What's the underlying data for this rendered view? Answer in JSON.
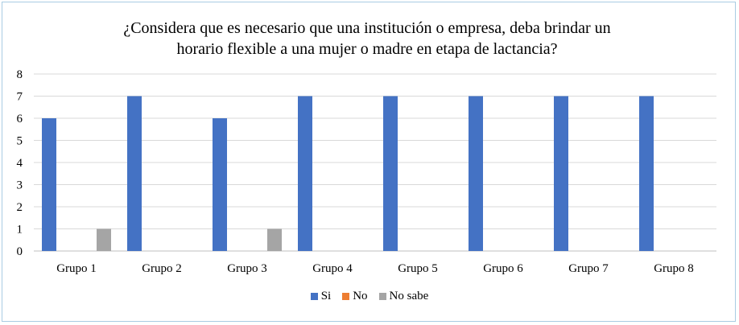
{
  "chart_data": {
    "type": "bar",
    "title_lines": [
      "¿Considera que es necesario que una institución o empresa, deba brindar un",
      "horario flexible a una mujer o madre en etapa de lactancia?"
    ],
    "xlabel": "",
    "ylabel": "",
    "categories": [
      "Grupo 1",
      "Grupo 2",
      "Grupo 3",
      "Grupo 4",
      "Grupo 5",
      "Grupo 6",
      "Grupo 7",
      "Grupo 8"
    ],
    "series": [
      {
        "name": "Si",
        "color": "#4472c4",
        "values": [
          6,
          7,
          6,
          7,
          7,
          7,
          7,
          7
        ]
      },
      {
        "name": "No",
        "color": "#ed7d31",
        "values": [
          0,
          0,
          0,
          0,
          0,
          0,
          0,
          0
        ]
      },
      {
        "name": "No sabe",
        "color": "#a5a5a5",
        "values": [
          1,
          0,
          1,
          0,
          0,
          0,
          0,
          0
        ]
      }
    ],
    "ylim": [
      0,
      8
    ],
    "yticks": [
      0,
      1,
      2,
      3,
      4,
      5,
      6,
      7,
      8
    ],
    "grid": true,
    "legend_position": "bottom"
  }
}
